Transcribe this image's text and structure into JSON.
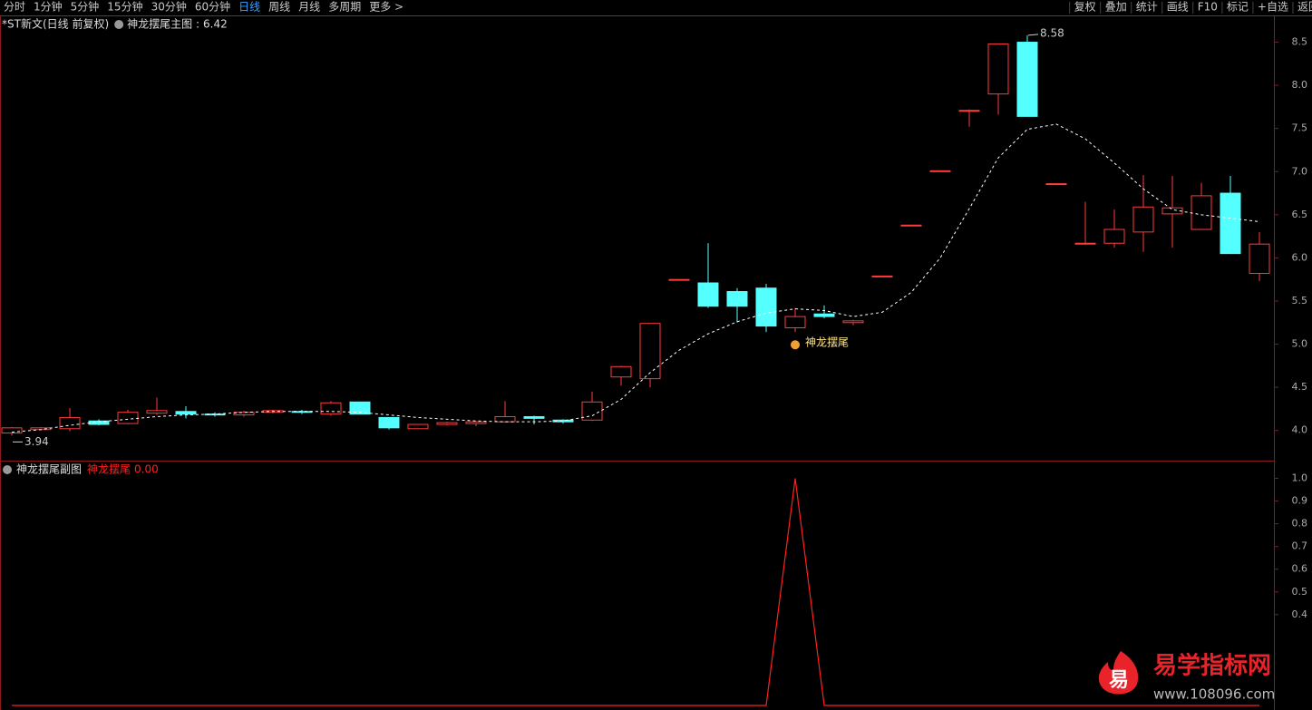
{
  "toolbar": {
    "left": [
      "分时",
      "1分钟",
      "5分钟",
      "15分钟",
      "30分钟",
      "60分钟",
      "日线",
      "周线",
      "月线",
      "多周期",
      "更多 >"
    ],
    "active": "日线",
    "right": [
      "复权",
      "叠加",
      "统计",
      "画线",
      "F10",
      "标记",
      "+自选",
      "返回"
    ]
  },
  "chart_data": [
    {
      "type": "candlestick",
      "title": "*ST新文(日线 前复权)",
      "indicator": "神龙摆尾主图 :",
      "indicator_value": 6.42,
      "open": [
        3.97,
        4.01,
        4.02,
        4.11,
        4.08,
        4.2,
        4.22,
        4.19,
        4.18,
        4.21,
        4.22,
        4.19,
        4.33,
        4.15,
        4.02,
        4.07,
        4.08,
        4.1,
        4.16,
        4.12,
        4.12,
        4.62,
        4.6,
        5.75,
        5.71,
        5.61,
        5.65,
        5.19,
        5.35,
        5.25,
        5.79,
        6.38,
        7.01,
        7.71,
        7.9,
        8.5,
        6.86,
        6.17,
        6.17,
        6.3,
        6.51,
        6.33,
        6.75,
        5.82
      ],
      "high": [
        4.04,
        4.04,
        4.26,
        4.13,
        4.24,
        4.38,
        4.28,
        4.21,
        4.23,
        4.24,
        4.24,
        4.34,
        4.33,
        4.15,
        4.07,
        4.1,
        4.11,
        4.34,
        4.17,
        4.13,
        4.45,
        4.75,
        5.24,
        5.75,
        6.17,
        5.65,
        5.7,
        5.42,
        5.45,
        5.28,
        5.79,
        6.38,
        7.01,
        7.72,
        8.48,
        8.58,
        6.86,
        6.65,
        6.56,
        6.96,
        6.95,
        6.87,
        6.95,
        6.3
      ],
      "low": [
        3.94,
        4.0,
        3.99,
        4.06,
        4.07,
        4.18,
        4.14,
        4.16,
        4.16,
        4.2,
        4.19,
        4.17,
        4.19,
        4.01,
        4.02,
        4.06,
        4.05,
        4.09,
        4.07,
        4.08,
        4.11,
        4.52,
        4.5,
        5.75,
        5.42,
        5.25,
        5.14,
        5.14,
        5.3,
        5.22,
        5.79,
        6.38,
        7.01,
        7.52,
        7.66,
        7.64,
        6.86,
        6.17,
        6.12,
        6.07,
        6.12,
        6.33,
        6.05,
        5.73
      ],
      "close": [
        4.03,
        4.03,
        4.15,
        4.07,
        4.21,
        4.23,
        4.19,
        4.18,
        4.21,
        4.23,
        4.21,
        4.32,
        4.19,
        4.03,
        4.07,
        4.09,
        4.1,
        4.16,
        4.14,
        4.1,
        4.33,
        4.74,
        5.24,
        5.75,
        5.44,
        5.44,
        5.21,
        5.32,
        5.32,
        5.27,
        5.79,
        6.38,
        7.01,
        7.71,
        8.48,
        7.64,
        6.86,
        6.17,
        6.33,
        6.59,
        6.58,
        6.72,
        6.05,
        6.16
      ],
      "up_color": "#ff3c3c",
      "down_color": "#54ffff",
      "ma": {
        "color": "#ffffff",
        "values": [
          3.98,
          4.01,
          4.06,
          4.1,
          4.13,
          4.16,
          4.18,
          4.19,
          4.21,
          4.22,
          4.22,
          4.22,
          4.21,
          4.18,
          4.15,
          4.13,
          4.11,
          4.1,
          4.1,
          4.11,
          4.17,
          4.36,
          4.67,
          4.93,
          5.12,
          5.26,
          5.36,
          5.41,
          5.39,
          5.32,
          5.37,
          5.6,
          6.0,
          6.57,
          7.16,
          7.49,
          7.55,
          7.38,
          7.1,
          6.8,
          6.56,
          6.5,
          6.46,
          6.42
        ]
      },
      "high_label": 8.58,
      "low_label": 3.94,
      "signal_label": "神龙摆尾",
      "ylim": [
        3.65,
        8.8
      ],
      "yticks": [
        {
          "value": 4,
          "label": "4.0"
        },
        4.5,
        {
          "value": 5,
          "label": "5.0"
        },
        5.5,
        {
          "value": 6,
          "label": "6.0"
        },
        6.5,
        {
          "value": 7,
          "label": "7.0"
        },
        7.5,
        {
          "value": 8,
          "label": "8.0"
        },
        8.5
      ]
    },
    {
      "type": "line",
      "title": "神龙摆尾副图",
      "series": [
        {
          "name": "神龙摆尾",
          "color": "#ff2020",
          "values": [
            0,
            0,
            0,
            0,
            0,
            0,
            0,
            0,
            0,
            0,
            0,
            0,
            0,
            0,
            0,
            0,
            0,
            0,
            0,
            0,
            0,
            0,
            0,
            0,
            0,
            0,
            0,
            1,
            0,
            0,
            0,
            0,
            0,
            0,
            0,
            0,
            0,
            0,
            0,
            0,
            0,
            0,
            0,
            0
          ]
        }
      ],
      "current_value": {
        "value": 0,
        "label": "0.00"
      },
      "ylim": [
        0,
        1.07
      ],
      "yticks": [
        {
          "value": 1,
          "label": "1.0"
        },
        0.9,
        0.8,
        0.7,
        0.6,
        0.5,
        0.4
      ]
    }
  ],
  "watermark": {
    "icon": "易",
    "title": "易学指标网",
    "url": "www.108096.com"
  }
}
